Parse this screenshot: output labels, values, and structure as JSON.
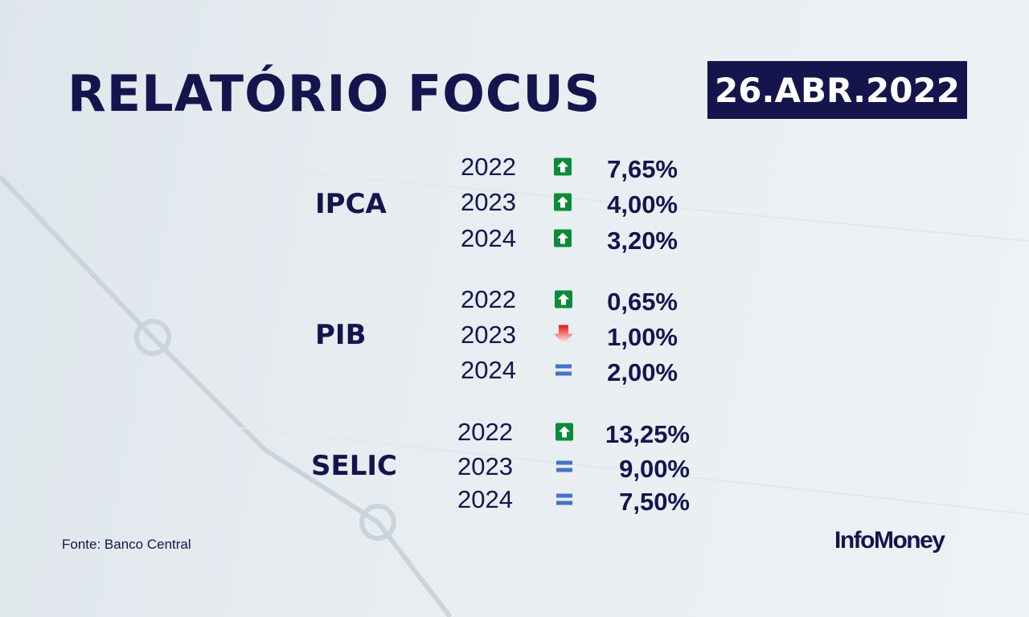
{
  "title": "RELATÓRIO FOCUS",
  "date": "26.ABR.2022",
  "source": "Fonte: Banco Central",
  "logo": "InfoMoney",
  "colors": {
    "navy": "#15154d",
    "up": "#0b8a3a",
    "down": "#e0161b",
    "equal": "#4472c4"
  },
  "indicators": [
    {
      "name": "IPCA",
      "rows": [
        {
          "year": "2022",
          "trend": "up-arrow",
          "value": "7,65%"
        },
        {
          "year": "2023",
          "trend": "up-arrow",
          "value": "4,00%"
        },
        {
          "year": "2024",
          "trend": "up-arrow",
          "value": "3,20%"
        }
      ]
    },
    {
      "name": "PIB",
      "rows": [
        {
          "year": "2022",
          "trend": "up-arrow",
          "value": "0,65%"
        },
        {
          "year": "2023",
          "trend": "down-arrow",
          "value": "1,00%"
        },
        {
          "year": "2024",
          "trend": "equal",
          "value": "2,00%"
        }
      ]
    },
    {
      "name": "SELIC",
      "rows": [
        {
          "year": "2022",
          "trend": "up-arrow",
          "value": "13,25%"
        },
        {
          "year": "2023",
          "trend": "equal",
          "value": "9,00%"
        },
        {
          "year": "2024",
          "trend": "equal",
          "value": "7,50%"
        }
      ]
    }
  ]
}
